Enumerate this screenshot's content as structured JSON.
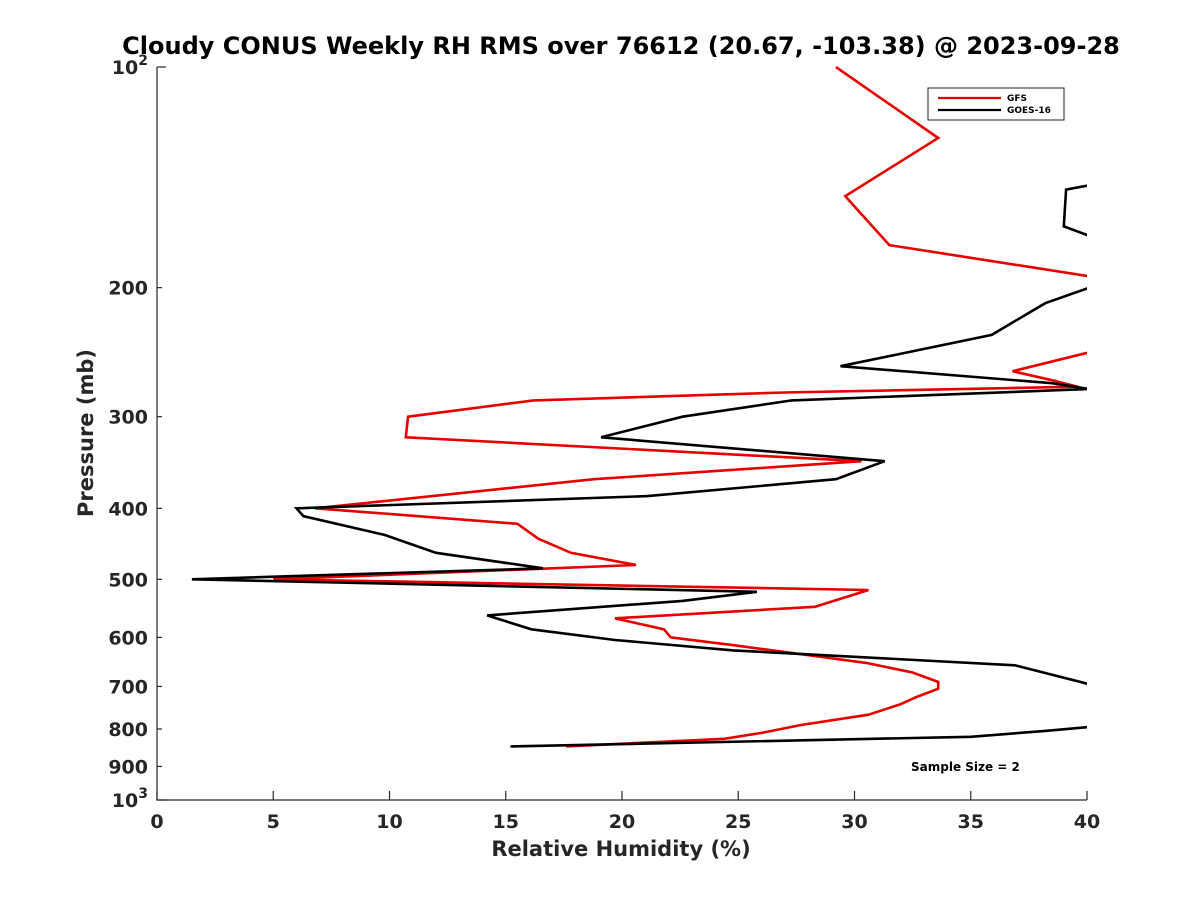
{
  "chart_data": {
    "type": "line",
    "title": "Cloudy CONUS Weekly RH RMS over 76612 (20.67, -103.38) @ 2023-09-28",
    "xlabel": "Relative Humidity (%)",
    "ylabel": "Pressure (mb)",
    "xlim": [
      0,
      40
    ],
    "ylim": [
      100,
      1000
    ],
    "yscale": "log",
    "y_reversed": true,
    "x_ticks": [
      0,
      5,
      10,
      15,
      20,
      25,
      30,
      35,
      40
    ],
    "x_tick_labels": [
      "0",
      "5",
      "10",
      "15",
      "20",
      "25",
      "30",
      "35",
      "40"
    ],
    "y_ticks": [
      100,
      200,
      300,
      400,
      500,
      600,
      700,
      800,
      900,
      1000
    ],
    "y_tick_labels": [
      {
        "base": "10",
        "sup": "2"
      },
      {
        "base": "200",
        "sup": ""
      },
      {
        "base": "300",
        "sup": ""
      },
      {
        "base": "400",
        "sup": ""
      },
      {
        "base": "500",
        "sup": ""
      },
      {
        "base": "600",
        "sup": ""
      },
      {
        "base": "700",
        "sup": ""
      },
      {
        "base": "800",
        "sup": ""
      },
      {
        "base": "900",
        "sup": ""
      },
      {
        "base": "10",
        "sup": "3"
      }
    ],
    "grid": false,
    "legend_position": "top-right",
    "series": [
      {
        "name": "GFS",
        "color": "#e60000",
        "points": [
          [
            29.2,
            100
          ],
          [
            33.6,
            125
          ],
          [
            29.6,
            150
          ],
          [
            31.5,
            175
          ],
          [
            40.1,
            193
          ],
          null,
          [
            40.1,
            245
          ],
          [
            36.8,
            260
          ],
          [
            38.6,
            268
          ],
          [
            39.6,
            273
          ],
          [
            27.0,
            278
          ],
          [
            16.2,
            285
          ],
          [
            10.8,
            300
          ],
          [
            10.7,
            320
          ],
          [
            30.3,
            345
          ],
          [
            18.8,
            365
          ],
          [
            6.8,
            400
          ],
          [
            15.5,
            420
          ],
          [
            16.4,
            440
          ],
          [
            17.8,
            460
          ],
          [
            20.6,
            478
          ],
          [
            5.0,
            500
          ],
          [
            30.6,
            517
          ],
          [
            28.3,
            545
          ],
          [
            19.7,
            565
          ],
          [
            21.8,
            585
          ],
          [
            22.1,
            600
          ],
          [
            24.8,
            615
          ],
          [
            30.5,
            650
          ],
          [
            32.5,
            670
          ],
          [
            33.6,
            690
          ],
          [
            33.6,
            705
          ],
          [
            32.6,
            725
          ],
          [
            32.0,
            740
          ],
          [
            30.6,
            765
          ],
          [
            27.7,
            790
          ],
          [
            26.0,
            810
          ],
          [
            24.4,
            825
          ],
          [
            17.6,
            845
          ]
        ]
      },
      {
        "name": "GOES-16",
        "color": "#000000",
        "points": [
          [
            40.1,
            145
          ],
          [
            39.1,
            147
          ],
          [
            39.0,
            165
          ],
          [
            40.1,
            170
          ],
          null,
          [
            40.1,
            200
          ],
          [
            38.2,
            210
          ],
          [
            35.9,
            232
          ],
          [
            29.4,
            256
          ],
          [
            38.5,
            270
          ],
          [
            40.1,
            275
          ],
          [
            27.3,
            285
          ],
          [
            22.6,
            300
          ],
          [
            19.1,
            320
          ],
          [
            31.3,
            345
          ],
          [
            29.2,
            365
          ],
          [
            21.1,
            385
          ],
          [
            6.0,
            400
          ],
          [
            6.3,
            410
          ],
          [
            9.8,
            435
          ],
          [
            12.0,
            460
          ],
          [
            16.6,
            483
          ],
          [
            1.5,
            500
          ],
          [
            25.8,
            520
          ],
          [
            22.6,
            535
          ],
          [
            14.2,
            560
          ],
          [
            16.1,
            585
          ],
          [
            19.7,
            605
          ],
          [
            24.8,
            625
          ],
          [
            36.9,
            655
          ],
          [
            40.1,
            695
          ],
          null,
          [
            40.1,
            795
          ],
          [
            38.2,
            805
          ],
          [
            35.0,
            820
          ],
          [
            15.2,
            845
          ]
        ]
      }
    ],
    "annotations": [
      {
        "text": "Sample Size = 2"
      }
    ]
  }
}
